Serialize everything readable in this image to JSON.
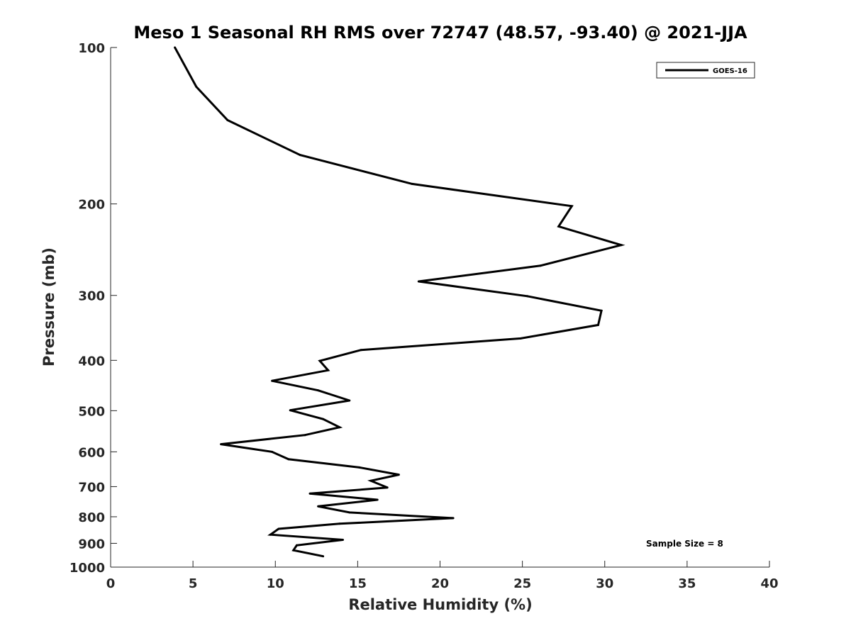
{
  "chart_data": {
    "type": "line",
    "title": "Meso 1 Seasonal RH RMS over 72747 (48.57, -93.40) @ 2021-JJA",
    "xlabel": "Relative Humidity (%)",
    "ylabel": "Pressure (mb)",
    "xlim": [
      0,
      40
    ],
    "ylim": [
      100,
      1000
    ],
    "y_scale": "log",
    "y_reversed": true,
    "grid": false,
    "legend_position": "top-right",
    "x_ticks": [
      "0",
      "5",
      "10",
      "15",
      "20",
      "25",
      "30",
      "35",
      "40"
    ],
    "y_ticks": [
      "100",
      "200",
      "300",
      "400",
      "500",
      "600",
      "700",
      "800",
      "900",
      "1000"
    ],
    "annotation": "Sample Size = 8",
    "series": [
      {
        "name": "GOES-16",
        "color": "#000000",
        "points": [
          [
            3.9,
            100
          ],
          [
            5.2,
            119
          ],
          [
            7.1,
            138
          ],
          [
            11.5,
            161
          ],
          [
            18.3,
            183
          ],
          [
            28.0,
            202
          ],
          [
            27.2,
            221
          ],
          [
            31.0,
            240
          ],
          [
            26.1,
            263
          ],
          [
            18.7,
            282
          ],
          [
            25.3,
            301
          ],
          [
            29.8,
            321
          ],
          [
            29.6,
            342
          ],
          [
            24.9,
            363
          ],
          [
            15.2,
            382
          ],
          [
            12.7,
            401
          ],
          [
            13.2,
            418
          ],
          [
            9.8,
            438
          ],
          [
            12.6,
            457
          ],
          [
            14.5,
            478
          ],
          [
            10.9,
            499
          ],
          [
            12.9,
            519
          ],
          [
            13.9,
            538
          ],
          [
            11.8,
            557
          ],
          [
            6.7,
            580
          ],
          [
            9.8,
            600
          ],
          [
            10.8,
            620
          ],
          [
            15.1,
            643
          ],
          [
            17.5,
            664
          ],
          [
            15.8,
            682
          ],
          [
            16.8,
            703
          ],
          [
            12.1,
            722
          ],
          [
            16.2,
            742
          ],
          [
            12.6,
            764
          ],
          [
            14.5,
            785
          ],
          [
            20.8,
            805
          ],
          [
            13.9,
            825
          ],
          [
            10.2,
            844
          ],
          [
            9.7,
            866
          ],
          [
            14.1,
            886
          ],
          [
            11.3,
            908
          ],
          [
            11.1,
            928
          ],
          [
            12.9,
            953
          ]
        ]
      }
    ]
  }
}
